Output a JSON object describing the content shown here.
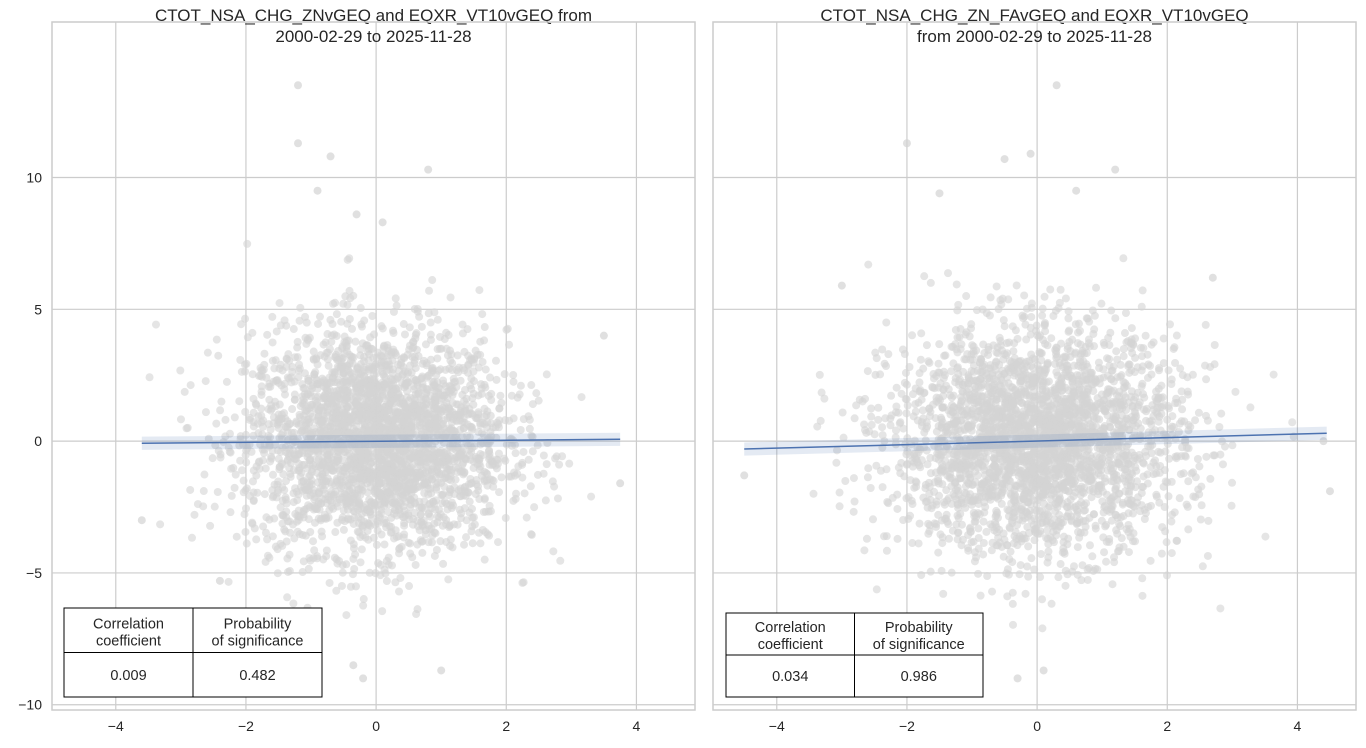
{
  "chart_data": [
    {
      "type": "scatter",
      "title": [
        "CTOT_NSA_CHG_ZNvGEQ and EQXR_VT10vGEQ from",
        "2000-02-29 to 2025-11-28"
      ],
      "xlabel": "",
      "ylabel": "",
      "xlim": [
        -4.98,
        4.9
      ],
      "ylim": [
        -10.2,
        15.9
      ],
      "xticks": [
        -4,
        -2,
        0,
        2,
        4
      ],
      "xtick_labels": [
        "−4",
        "−2",
        "0",
        "2",
        "4"
      ],
      "yticks": [
        -10,
        -5,
        0,
        5,
        10
      ],
      "ytick_labels": [
        "−10",
        "−5",
        "0",
        "5",
        "10"
      ],
      "grid": true,
      "point_color": "#d3d3d3",
      "line_color": "#4c72b0",
      "cloud": {
        "x_std": 1.0,
        "y_std": 2.1,
        "x_range": [
          -3.6,
          3.75
        ]
      },
      "outliers": [
        [
          -1.2,
          13.5
        ],
        [
          -1.2,
          11.3
        ],
        [
          -0.7,
          10.8
        ],
        [
          0.8,
          10.3
        ],
        [
          -0.9,
          9.5
        ],
        [
          -0.3,
          8.6
        ],
        [
          0.1,
          8.3
        ],
        [
          -0.2,
          -9.0
        ],
        [
          1.0,
          -8.7
        ],
        [
          -0.35,
          -8.5
        ],
        [
          -3.6,
          -3.0
        ],
        [
          3.75,
          -1.6
        ],
        [
          3.5,
          4.0
        ],
        [
          -2.4,
          -5.3
        ]
      ],
      "regression": {
        "x": [
          -3.6,
          3.75
        ],
        "y": [
          -0.08,
          0.07
        ]
      },
      "stats_table": {
        "headers": [
          "Correlation\ncoefficient",
          "Probability\nof significance"
        ],
        "values": [
          "0.009",
          "0.482"
        ]
      }
    },
    {
      "type": "scatter",
      "title": [
        "CTOT_NSA_CHG_ZN_FAvGEQ and EQXR_VT10vGEQ",
        "from 2000-02-29 to 2025-11-28"
      ],
      "xlabel": "",
      "ylabel": "",
      "xlim": [
        -4.98,
        4.9
      ],
      "ylim": [
        -10.2,
        15.9
      ],
      "xticks": [
        -4,
        -2,
        0,
        2,
        4
      ],
      "xtick_labels": [
        "−4",
        "−2",
        "0",
        "2",
        "4"
      ],
      "grid": true,
      "point_color": "#d3d3d3",
      "line_color": "#4c72b0",
      "cloud": {
        "x_std": 1.1,
        "y_std": 2.1,
        "x_range": [
          -4.5,
          4.45
        ]
      },
      "outliers": [
        [
          0.3,
          13.5
        ],
        [
          -2.0,
          11.3
        ],
        [
          -0.5,
          10.7
        ],
        [
          -0.1,
          10.9
        ],
        [
          1.2,
          10.3
        ],
        [
          0.6,
          9.5
        ],
        [
          -1.5,
          9.4
        ],
        [
          -0.3,
          -9.0
        ],
        [
          0.1,
          -8.7
        ],
        [
          -4.5,
          -1.3
        ],
        [
          4.5,
          -1.9
        ],
        [
          4.4,
          0.0
        ],
        [
          -3.0,
          5.9
        ],
        [
          2.7,
          6.2
        ]
      ],
      "regression": {
        "x": [
          -4.5,
          4.45
        ],
        "y": [
          -0.3,
          0.3
        ]
      },
      "stats_table": {
        "headers": [
          "Correlation\ncoefficient",
          "Probability\nof significance"
        ],
        "values": [
          "0.034",
          "0.986"
        ]
      }
    }
  ]
}
